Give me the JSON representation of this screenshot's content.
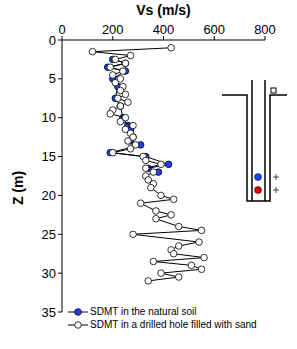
{
  "chart_data": {
    "type": "scatter",
    "x_label": "Vs (m/s)",
    "y_label": "Z (m)",
    "xlim": [
      0,
      800
    ],
    "xticks": [
      0,
      200,
      400,
      600,
      800
    ],
    "ylim": [
      0,
      35
    ],
    "yticks": [
      0,
      5,
      10,
      15,
      20,
      25,
      30,
      35
    ],
    "grid": false,
    "legend": "lower left",
    "series": [
      {
        "name": "SDMT in the natural soil",
        "color": "#1f3fff",
        "marker": "circle",
        "line_style": "solid",
        "x": [
          200,
          250,
          180,
          250,
          200,
          220,
          210,
          230,
          240,
          260,
          270,
          280,
          270,
          310,
          190,
          330,
          420,
          340,
          380
        ],
        "y": [
          2.5,
          3.0,
          3.5,
          4.0,
          5.0,
          6.0,
          7.5,
          8.5,
          10.0,
          11.0,
          11.5,
          12.5,
          13.0,
          13.5,
          14.5,
          15.0,
          16.0,
          16.5,
          17.0
        ]
      },
      {
        "name": "SDMT in a drilled hole filled with sand",
        "color": "#ffffff",
        "marker": "circle",
        "line_style": "solid",
        "x": [
          430,
          120,
          270,
          210,
          250,
          190,
          240,
          200,
          230,
          210,
          240,
          230,
          250,
          220,
          260,
          230,
          200,
          190,
          250,
          230,
          280,
          250,
          270,
          280,
          260,
          290,
          270,
          200,
          320,
          330,
          390,
          330,
          360,
          330,
          340,
          360,
          350,
          390,
          440,
          310,
          370,
          430,
          370,
          460,
          550,
          280,
          540,
          460,
          430,
          440,
          560,
          360,
          510,
          550,
          390,
          460,
          340
        ],
        "y": [
          1.0,
          1.5,
          2.0,
          2.5,
          3.0,
          3.5,
          4.0,
          4.5,
          5.0,
          5.5,
          6.0,
          6.5,
          7.0,
          7.5,
          8.0,
          8.5,
          9.0,
          9.5,
          10.0,
          10.5,
          11.0,
          11.5,
          12.0,
          12.5,
          13.0,
          13.5,
          14.0,
          14.5,
          15.0,
          15.5,
          16.0,
          16.5,
          17.0,
          17.5,
          18.0,
          18.5,
          19.0,
          20.0,
          20.5,
          21.0,
          22.0,
          22.5,
          23.0,
          24.0,
          24.5,
          25.0,
          26.0,
          26.5,
          27.0,
          27.5,
          28.0,
          28.5,
          29.0,
          29.5,
          30.0,
          30.5,
          31.0
        ]
      }
    ]
  }
}
